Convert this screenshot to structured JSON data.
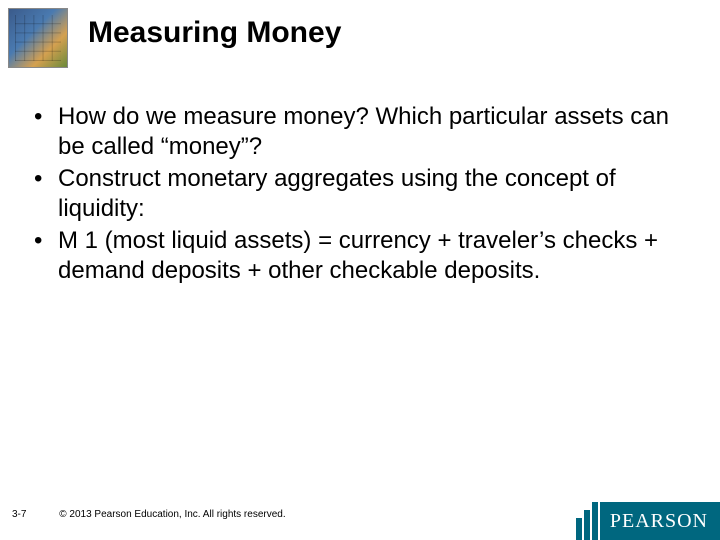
{
  "slide": {
    "title": "Measuring Money",
    "bullets": [
      "How do we measure money? Which particular assets can be called “money”?",
      "Construct monetary aggregates using the concept of liquidity:",
      "M 1 (most liquid assets) = currency + traveler’s checks + demand deposits + other checkable deposits."
    ]
  },
  "footer": {
    "page": "3-7",
    "copyright": "© 2013 Pearson Education, Inc. All rights reserved."
  },
  "logo": {
    "brand": "PEARSON"
  },
  "colors": {
    "brand_bg": "#00677f",
    "text": "#000000",
    "background": "#ffffff"
  }
}
